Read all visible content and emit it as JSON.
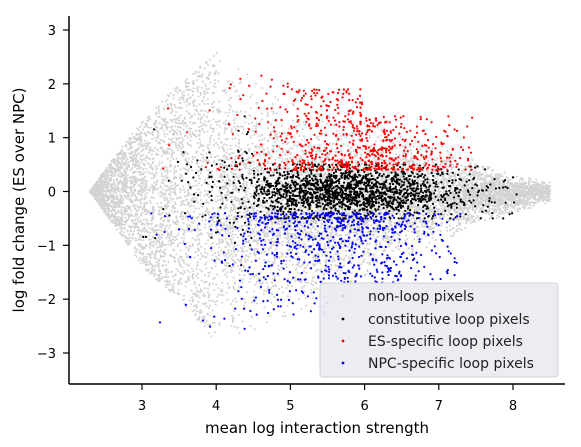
{
  "chart_data": {
    "type": "scatter",
    "xlabel": "mean log interaction strength",
    "ylabel": "log fold change (ES over NPC)",
    "xlim": [
      2.05,
      8.7
    ],
    "ylim": [
      -3.6,
      3.3
    ],
    "xticks": [
      3,
      4,
      5,
      6,
      7,
      8
    ],
    "yticks": [
      -3,
      -2,
      -1,
      0,
      1,
      2,
      3
    ],
    "ytick_labels": [
      "−3",
      "−2",
      "−1",
      "0",
      "1",
      "2",
      "3"
    ],
    "grid": false,
    "legend_position": "lower-right",
    "series": [
      {
        "name": "non-loop pixels",
        "color": "#d3d3d3",
        "description_of_shape": "dense diamond-shaped cloud",
        "envelope": {
          "x": [
            2.3,
            2.6,
            3.0,
            3.5,
            4.0,
            4.5,
            5.0,
            5.5,
            6.0,
            6.5,
            7.0,
            7.5,
            8.0,
            8.5
          ],
          "upper": [
            0.0,
            0.6,
            1.3,
            2.0,
            2.6,
            2.2,
            1.7,
            1.5,
            1.3,
            1.1,
            0.9,
            0.6,
            0.3,
            0.2
          ],
          "lower": [
            0.0,
            -0.6,
            -1.4,
            -2.0,
            -2.8,
            -2.6,
            -2.3,
            -2.0,
            -1.6,
            -1.3,
            -1.0,
            -0.7,
            -0.4,
            -0.2
          ]
        }
      },
      {
        "name": "constitutive loop pixels",
        "color": "#000000",
        "band": {
          "ymin": -0.5,
          "ymax": 0.5
        },
        "xrange": [
          2.6,
          8.1
        ]
      },
      {
        "name": "ES-specific loop pixels",
        "color": "#ff0000",
        "band": {
          "ymin": 0.4,
          "ymax": 2.2
        },
        "xrange": [
          3.2,
          7.5
        ]
      },
      {
        "name": "NPC-specific loop pixels",
        "color": "#0000ff",
        "band": {
          "ymin": -2.6,
          "ymax": -0.4
        },
        "xrange": [
          3.1,
          7.3
        ]
      }
    ]
  }
}
